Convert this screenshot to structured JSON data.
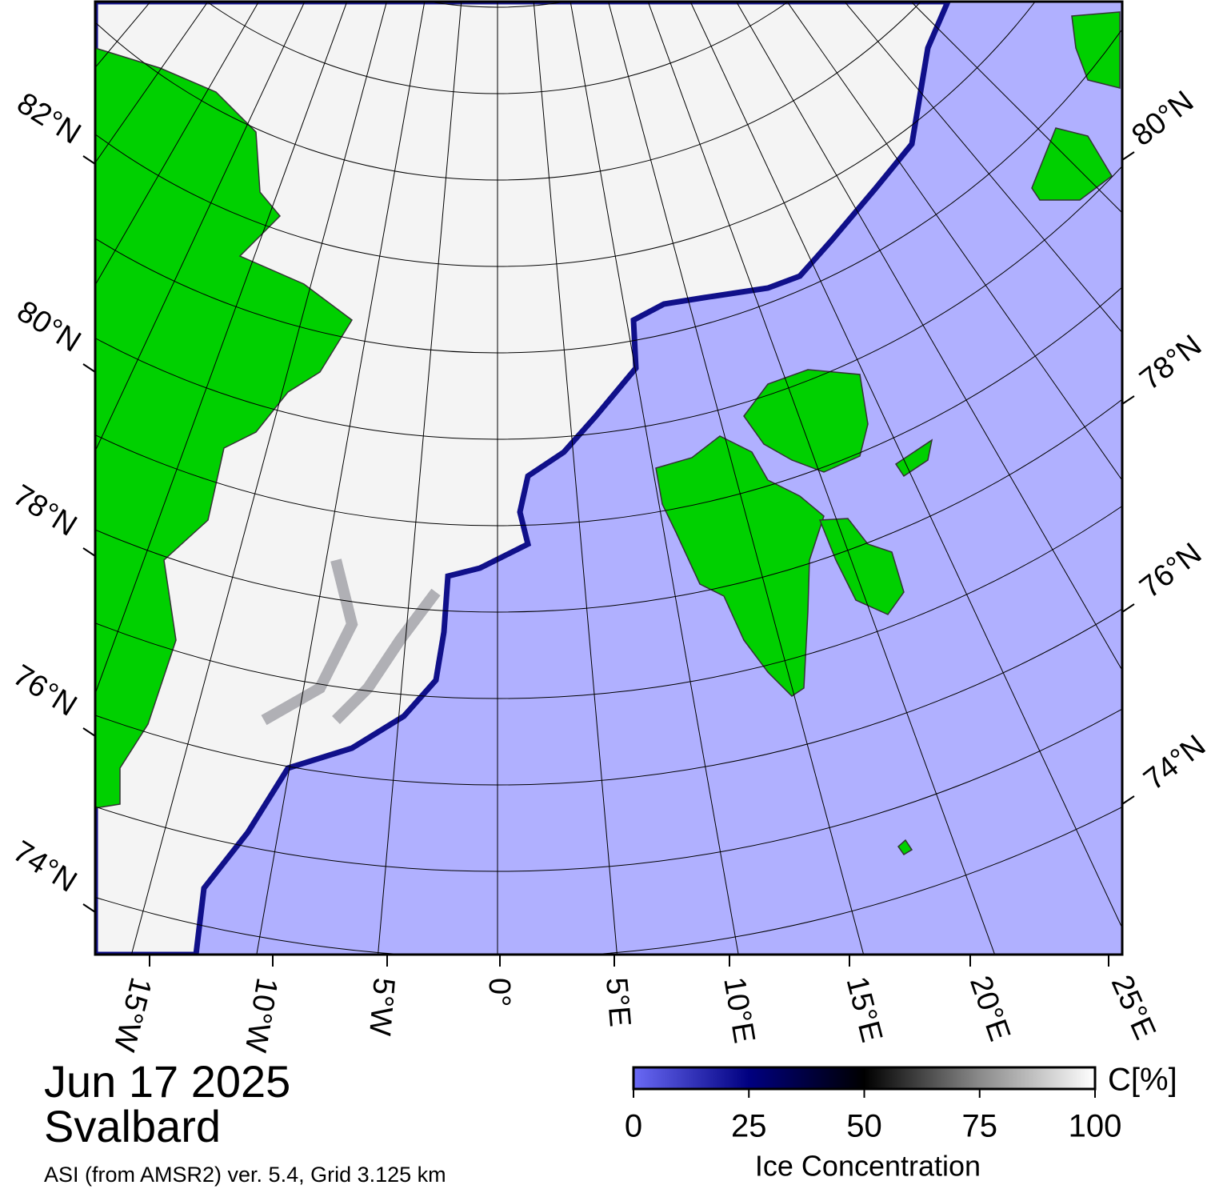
{
  "map": {
    "date": "Jun 17 2025",
    "region": "Svalbard",
    "source": "ASI (from AMSR2) ver. 5.4,  Grid 3.125 km",
    "lat_labels_left": [
      "82°N",
      "80°N",
      "78°N",
      "76°N",
      "74°N"
    ],
    "lat_labels_right": [
      "80°N",
      "78°N",
      "76°N",
      "74°N"
    ],
    "lon_labels": [
      "15°W",
      "10°W",
      "5°W",
      "0°",
      "5°E",
      "10°E",
      "15°E",
      "20°E",
      "25°E"
    ],
    "colorbar": {
      "label": "Ice Concentration",
      "unit": "C[%]",
      "lim": [
        0,
        100
      ],
      "ticks": [
        0,
        25,
        50,
        75,
        100
      ]
    }
  }
}
